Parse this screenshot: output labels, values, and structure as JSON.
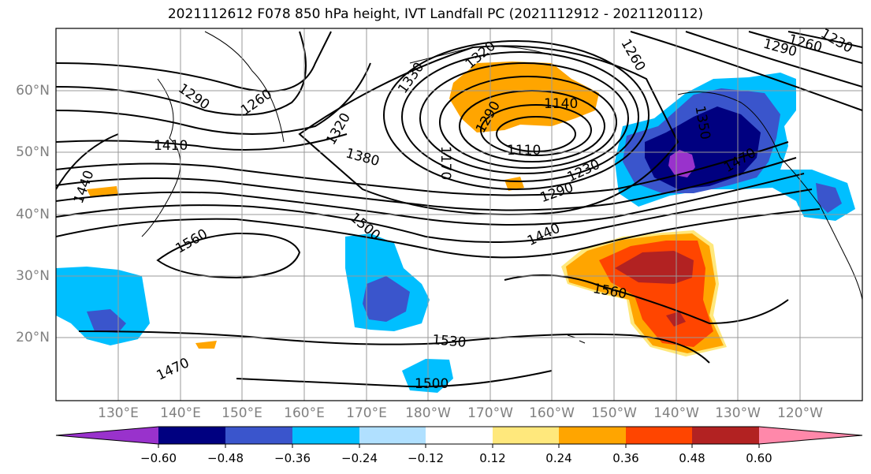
{
  "title": "2021112612 F078 850 hPa height, IVT Landfall PC (2021112912 - 2021120112)",
  "lat_labels": [
    "60°N",
    "50°N",
    "40°N",
    "30°N",
    "20°N"
  ],
  "lon_labels": [
    "130°E",
    "140°E",
    "150°E",
    "160°E",
    "170°E",
    "180°W",
    "170°W",
    "160°W",
    "150°W",
    "140°W",
    "130°W",
    "120°W"
  ],
  "contour_labels": [
    "1290",
    "1260",
    "1330",
    "1320",
    "1320",
    "1260",
    "1290",
    "1260",
    "1230",
    "1410",
    "1440",
    "1380",
    "1290",
    "1140",
    "1170",
    "1110",
    "1230",
    "1350",
    "1470",
    "1290",
    "1440",
    "1500",
    "1560",
    "1560",
    "1530",
    "1470",
    "1500"
  ],
  "colorbar": {
    "ticks": [
      "−0.60",
      "−0.48",
      "−0.36",
      "−0.24",
      "−0.12",
      "0.12",
      "0.24",
      "0.36",
      "0.48",
      "0.60"
    ],
    "colors": [
      "#9932CC",
      "#000080",
      "#3A55CC",
      "#00BFFF",
      "#B0E0FF",
      "#FFFFFF",
      "#FFE87C",
      "#FFA500",
      "#FF4500",
      "#B22222",
      "#FF88AA"
    ]
  },
  "shading_colors": {
    "neg_strong": "#9932CC",
    "neg_dark": "#000080",
    "neg_mid": "#3A55CC",
    "neg_light": "#00BFFF",
    "pos_light": "#FFE87C",
    "pos_orange": "#FFA500",
    "pos_red": "#FF4500",
    "pos_dark": "#B22222"
  }
}
